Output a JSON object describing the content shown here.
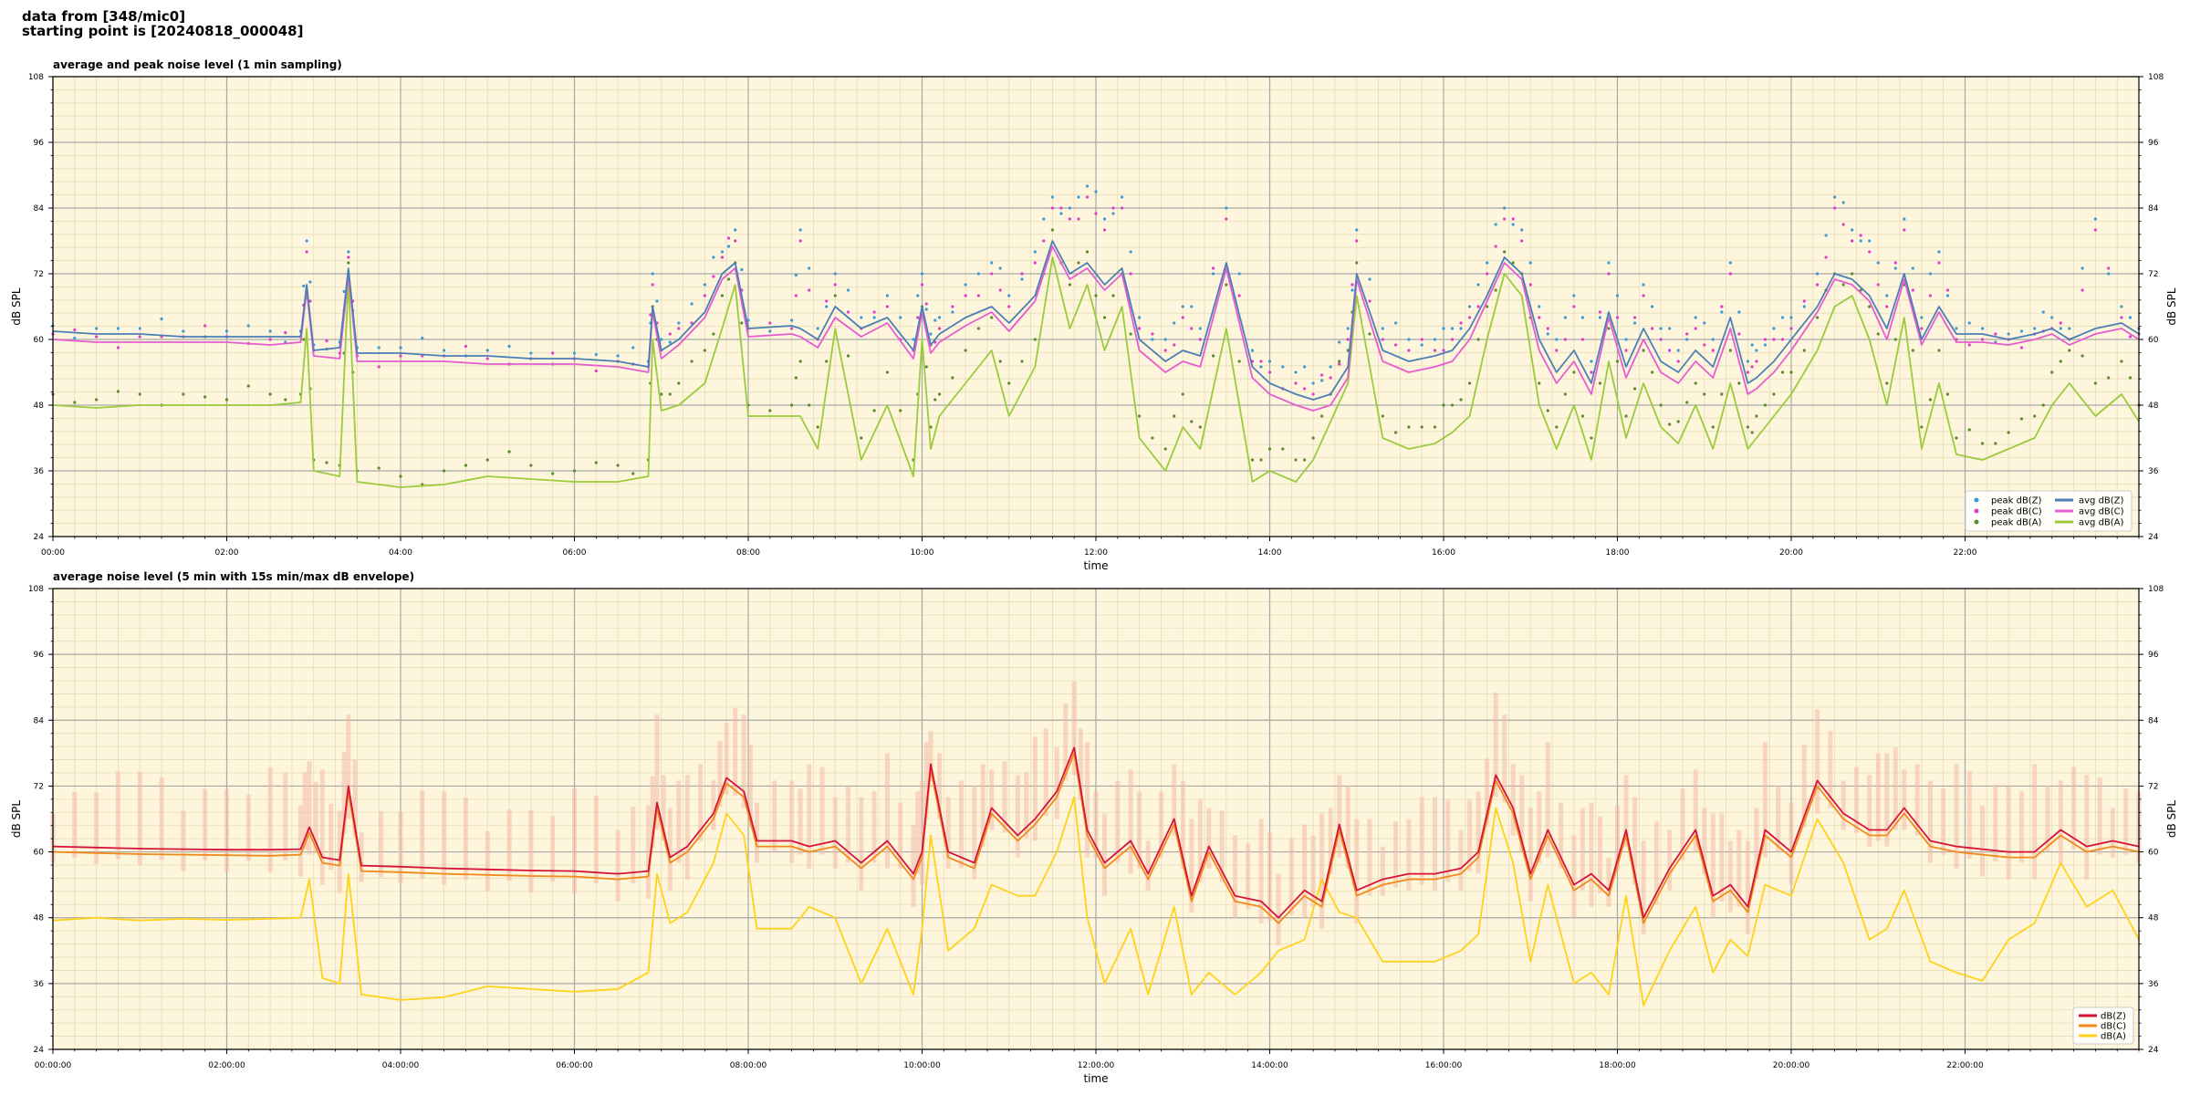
{
  "header": {
    "line1": "data from [348/mic0]",
    "line2": "starting point is [20240818_000048]"
  },
  "chart_data": [
    {
      "type": "line",
      "title": "average and peak noise level (1 min sampling)",
      "xlabel": "time",
      "ylabel": "dB SPL",
      "ylim": [
        24,
        108
      ],
      "xlim_hours": [
        0,
        24
      ],
      "yticks": [
        24,
        36,
        48,
        60,
        72,
        84,
        96,
        108
      ],
      "xtick_labels": [
        "00:00",
        "02:00",
        "04:00",
        "06:00",
        "08:00",
        "10:00",
        "12:00",
        "14:00",
        "16:00",
        "18:00",
        "20:00",
        "22:00"
      ],
      "grid": true,
      "legend_position": "lower-right",
      "background": "#fdf6dc",
      "x_hours": [
        0,
        0.5,
        1,
        1.5,
        2,
        2.5,
        2.85,
        2.92,
        3.0,
        3.3,
        3.4,
        3.5,
        4,
        4.5,
        5,
        5.5,
        6,
        6.5,
        6.85,
        6.9,
        7.0,
        7.2,
        7.5,
        7.7,
        7.85,
        8.0,
        8.5,
        8.6,
        8.8,
        9.0,
        9.3,
        9.6,
        9.9,
        10.0,
        10.1,
        10.2,
        10.5,
        10.8,
        11.0,
        11.3,
        11.5,
        11.7,
        11.9,
        12.1,
        12.3,
        12.5,
        12.8,
        13.0,
        13.2,
        13.5,
        13.8,
        14.0,
        14.3,
        14.5,
        14.7,
        14.9,
        15.0,
        15.3,
        15.6,
        15.9,
        16.1,
        16.3,
        16.5,
        16.7,
        16.9,
        17.1,
        17.3,
        17.5,
        17.7,
        17.9,
        18.1,
        18.3,
        18.5,
        18.7,
        18.9,
        19.1,
        19.3,
        19.5,
        19.6,
        19.8,
        20.0,
        20.3,
        20.5,
        20.7,
        20.9,
        21.1,
        21.3,
        21.5,
        21.7,
        21.9,
        22.2,
        22.5,
        22.8,
        23.0,
        23.2,
        23.5,
        23.8,
        24.0
      ],
      "series": [
        {
          "name": "avg dB(Z)",
          "color": "#4a7fb5",
          "values": [
            61.5,
            61,
            61,
            60.5,
            60.5,
            60.5,
            60.5,
            70,
            58,
            58.5,
            73,
            57.5,
            57.5,
            57,
            57,
            56.5,
            56.5,
            56,
            55,
            66,
            58,
            60,
            65,
            72,
            74,
            62,
            62.5,
            62,
            60,
            66,
            62,
            64,
            58,
            66,
            59,
            61,
            64,
            66,
            63,
            68,
            78,
            72,
            74,
            70,
            73,
            60,
            56,
            58,
            57,
            74,
            55,
            52,
            50,
            49,
            50,
            55,
            72,
            58,
            56,
            57,
            58,
            62,
            68,
            75,
            72,
            60,
            54,
            58,
            52,
            65,
            55,
            62,
            56,
            54,
            58,
            55,
            64,
            52,
            53,
            56,
            60,
            66,
            72,
            71,
            68,
            62,
            72,
            60,
            66,
            61,
            61,
            60,
            61,
            62,
            60,
            62,
            63,
            61
          ]
        },
        {
          "name": "avg dB(C)",
          "color": "#e65ccf",
          "values": [
            60,
            59.5,
            59.5,
            59.5,
            59.5,
            59,
            59.5,
            69,
            57,
            56.5,
            72,
            56,
            56,
            56,
            55.5,
            55.5,
            55.5,
            55,
            54,
            65,
            56.5,
            59,
            64,
            71,
            73,
            60.5,
            61,
            60.5,
            58.5,
            64,
            60.5,
            63,
            56.5,
            65,
            57.5,
            59.5,
            62.5,
            65,
            61.5,
            67,
            77,
            71,
            73,
            69,
            72,
            58,
            54,
            56,
            55,
            73,
            53,
            50,
            48,
            47,
            48,
            53,
            71,
            56,
            54,
            55,
            56,
            60,
            67,
            74,
            71,
            58,
            52,
            56,
            50,
            64,
            53,
            60,
            54,
            52,
            56,
            53,
            62,
            50,
            51,
            54,
            58,
            65,
            71,
            70,
            67,
            60,
            71,
            59,
            65,
            59.5,
            59.5,
            59,
            60,
            61,
            59,
            61,
            62,
            60
          ]
        },
        {
          "name": "avg dB(A)",
          "color": "#9bcb3d",
          "values": [
            48,
            47.5,
            48,
            48,
            48,
            48,
            48.5,
            62,
            36,
            35,
            71,
            34,
            33,
            33.5,
            35,
            34.5,
            34,
            34,
            35,
            60,
            47,
            48,
            52,
            62,
            70,
            46,
            46,
            46,
            40,
            62,
            38,
            48,
            35,
            60,
            40,
            46,
            52,
            58,
            46,
            55,
            75,
            62,
            70,
            58,
            66,
            42,
            36,
            44,
            40,
            62,
            34,
            36,
            34,
            38,
            45,
            52,
            68,
            42,
            40,
            41,
            43,
            46,
            60,
            72,
            68,
            48,
            40,
            48,
            38,
            56,
            42,
            52,
            44,
            41,
            48,
            40,
            52,
            40,
            42,
            46,
            50,
            58,
            66,
            68,
            60,
            48,
            64,
            40,
            52,
            39,
            38,
            40,
            42,
            48,
            52,
            46,
            50,
            45
          ]
        }
      ],
      "peak_series": [
        {
          "name": "peak dB(Z)",
          "color": "#3b9bd6",
          "values": [
            62.5,
            62,
            62,
            61.5,
            61.5,
            61.5,
            61.5,
            78,
            59,
            59.5,
            76,
            58.5,
            58.5,
            58,
            58,
            57.5,
            57.5,
            57,
            56,
            72,
            60,
            63,
            70,
            76,
            80,
            63.5,
            63.5,
            80,
            62,
            72,
            64,
            68,
            60,
            72,
            61,
            64,
            70,
            74,
            68,
            76,
            86,
            84,
            88,
            82,
            86,
            64,
            60,
            66,
            62,
            84,
            58,
            56,
            54,
            52,
            55,
            62,
            80,
            62,
            60,
            60,
            62,
            66,
            74,
            84,
            80,
            66,
            60,
            68,
            56,
            74,
            60,
            70,
            62,
            58,
            64,
            60,
            74,
            56,
            58,
            62,
            64,
            72,
            86,
            80,
            78,
            68,
            82,
            64,
            76,
            62,
            62,
            61,
            62,
            64,
            62,
            82,
            66,
            62
          ]
        },
        {
          "name": "peak dB(C)",
          "color": "#e03cc9",
          "values": [
            61,
            60.5,
            60.5,
            60.5,
            60.5,
            60,
            60.5,
            76,
            58,
            57.5,
            75,
            57,
            57,
            57,
            56.5,
            56.5,
            56.5,
            56,
            55,
            70,
            58,
            62,
            68,
            75,
            78,
            62,
            62,
            78,
            60,
            70,
            62,
            66,
            58,
            70,
            59,
            62,
            68,
            72,
            66,
            74,
            84,
            82,
            86,
            80,
            84,
            62,
            58,
            64,
            60,
            82,
            56,
            54,
            52,
            50,
            53,
            60,
            78,
            60,
            58,
            58,
            60,
            64,
            72,
            82,
            78,
            64,
            58,
            66,
            54,
            72,
            58,
            68,
            60,
            56,
            62,
            58,
            72,
            54,
            56,
            60,
            62,
            70,
            84,
            78,
            76,
            66,
            80,
            62,
            74,
            60,
            60,
            60,
            61,
            62,
            60,
            80,
            64,
            61
          ]
        },
        {
          "name": "peak dB(A)",
          "color": "#5c8a2e",
          "values": [
            50,
            49,
            50,
            50,
            49,
            50,
            50,
            68,
            38,
            37,
            74,
            36,
            35,
            36,
            38,
            37,
            36,
            37,
            38,
            66,
            50,
            52,
            58,
            68,
            74,
            48,
            48,
            56,
            44,
            68,
            42,
            54,
            38,
            66,
            44,
            50,
            58,
            64,
            52,
            60,
            80,
            70,
            76,
            64,
            72,
            46,
            40,
            50,
            44,
            70,
            38,
            40,
            38,
            42,
            50,
            58,
            74,
            46,
            44,
            44,
            48,
            52,
            66,
            76,
            72,
            52,
            44,
            54,
            42,
            62,
            46,
            58,
            48,
            45,
            52,
            44,
            58,
            44,
            46,
            50,
            54,
            64,
            72,
            72,
            66,
            52,
            70,
            44,
            58,
            42,
            41,
            43,
            46,
            54,
            58,
            52,
            56,
            48
          ]
        }
      ]
    },
    {
      "type": "line",
      "title": "average noise level (5 min with 15s min/max dB envelope)",
      "xlabel": "time",
      "ylabel": "dB SPL",
      "ylim": [
        24,
        108
      ],
      "xlim_hours": [
        0,
        24
      ],
      "yticks": [
        24,
        36,
        48,
        60,
        72,
        84,
        96,
        108
      ],
      "xtick_labels": [
        "00:00:00",
        "02:00:00",
        "04:00:00",
        "06:00:00",
        "08:00:00",
        "10:00:00",
        "12:00:00",
        "14:00:00",
        "16:00:00",
        "18:00:00",
        "20:00:00",
        "22:00:00"
      ],
      "grid": true,
      "legend_position": "lower-right",
      "background": "#fdf6dc",
      "envelope_color": "#f4b9a6",
      "x_hours": [
        0,
        0.5,
        1,
        1.5,
        2,
        2.5,
        2.85,
        2.95,
        3.1,
        3.3,
        3.4,
        3.55,
        4,
        4.5,
        5,
        5.5,
        6,
        6.5,
        6.85,
        6.95,
        7.1,
        7.3,
        7.6,
        7.75,
        7.95,
        8.1,
        8.5,
        8.7,
        9.0,
        9.3,
        9.6,
        9.9,
        10.0,
        10.1,
        10.3,
        10.6,
        10.8,
        11.1,
        11.3,
        11.55,
        11.75,
        11.9,
        12.1,
        12.4,
        12.6,
        12.9,
        13.1,
        13.3,
        13.6,
        13.9,
        14.1,
        14.4,
        14.6,
        14.8,
        15.0,
        15.3,
        15.6,
        15.9,
        16.2,
        16.4,
        16.6,
        16.8,
        17.0,
        17.2,
        17.5,
        17.7,
        17.9,
        18.1,
        18.3,
        18.6,
        18.9,
        19.1,
        19.3,
        19.5,
        19.7,
        20.0,
        20.3,
        20.6,
        20.9,
        21.1,
        21.3,
        21.6,
        21.9,
        22.2,
        22.5,
        22.8,
        23.1,
        23.4,
        23.7,
        24.0
      ],
      "series": [
        {
          "name": "dB(Z)",
          "color": "#d6123a",
          "values": [
            61,
            60.8,
            60.6,
            60.5,
            60.4,
            60.4,
            60.5,
            64.5,
            59,
            58.5,
            72,
            57.5,
            57.3,
            57,
            56.8,
            56.6,
            56.5,
            56,
            56.5,
            69,
            59,
            61,
            67,
            73.5,
            71,
            62,
            62,
            61,
            62,
            58,
            62,
            56,
            60,
            76,
            60,
            58,
            68,
            63,
            66,
            71,
            79,
            64,
            58,
            62,
            56,
            66,
            52,
            61,
            52,
            51,
            48,
            53,
            51,
            65,
            53,
            55,
            56,
            56,
            57,
            60,
            74,
            68,
            56,
            64,
            54,
            56,
            53,
            64,
            48,
            57,
            64,
            52,
            54,
            50,
            64,
            60,
            73,
            67,
            64,
            64,
            68,
            62,
            61,
            60.5,
            60,
            60,
            64,
            61,
            62,
            61
          ]
        },
        {
          "name": "dB(C)",
          "color": "#f08a1a",
          "values": [
            60,
            59.8,
            59.6,
            59.5,
            59.4,
            59.3,
            59.5,
            63.5,
            58,
            57.5,
            71,
            56.5,
            56.3,
            56,
            55.8,
            55.6,
            55.5,
            55,
            55.5,
            68,
            58,
            60,
            66,
            72.5,
            70,
            61,
            61,
            60,
            61,
            57,
            61,
            55,
            59,
            75,
            59,
            57,
            67,
            62,
            65,
            70,
            78,
            63,
            57,
            61,
            55,
            65,
            51,
            60,
            51,
            50,
            47,
            52,
            50,
            64,
            52,
            54,
            55,
            55,
            56,
            59,
            73,
            67,
            55,
            63,
            53,
            55,
            52,
            63,
            47,
            56,
            63,
            51,
            53,
            49,
            63,
            59,
            72,
            66,
            63,
            63,
            67,
            61,
            60,
            59.5,
            59,
            59,
            63,
            60,
            61,
            60
          ]
        },
        {
          "name": "dB(A)",
          "color": "#ffd21a",
          "values": [
            47.5,
            48,
            47.5,
            47.8,
            47.6,
            47.8,
            48,
            55,
            37,
            36,
            56,
            34,
            33,
            33.5,
            35.5,
            35,
            34.5,
            35,
            38,
            56,
            47,
            49,
            58,
            67,
            63,
            46,
            46,
            50,
            48,
            36,
            46,
            34,
            46,
            63,
            42,
            46,
            54,
            52,
            52,
            60,
            70,
            48,
            36,
            46,
            34,
            50,
            34,
            38,
            34,
            38,
            42,
            44,
            55,
            49,
            48,
            40,
            40,
            40,
            42,
            45,
            68,
            58,
            40,
            54,
            36,
            38,
            34,
            52,
            32,
            42,
            50,
            38,
            44,
            41,
            54,
            52,
            66,
            58,
            44,
            46,
            53,
            40,
            38,
            36.5,
            44,
            47,
            58,
            50,
            53,
            44
          ]
        }
      ]
    }
  ]
}
